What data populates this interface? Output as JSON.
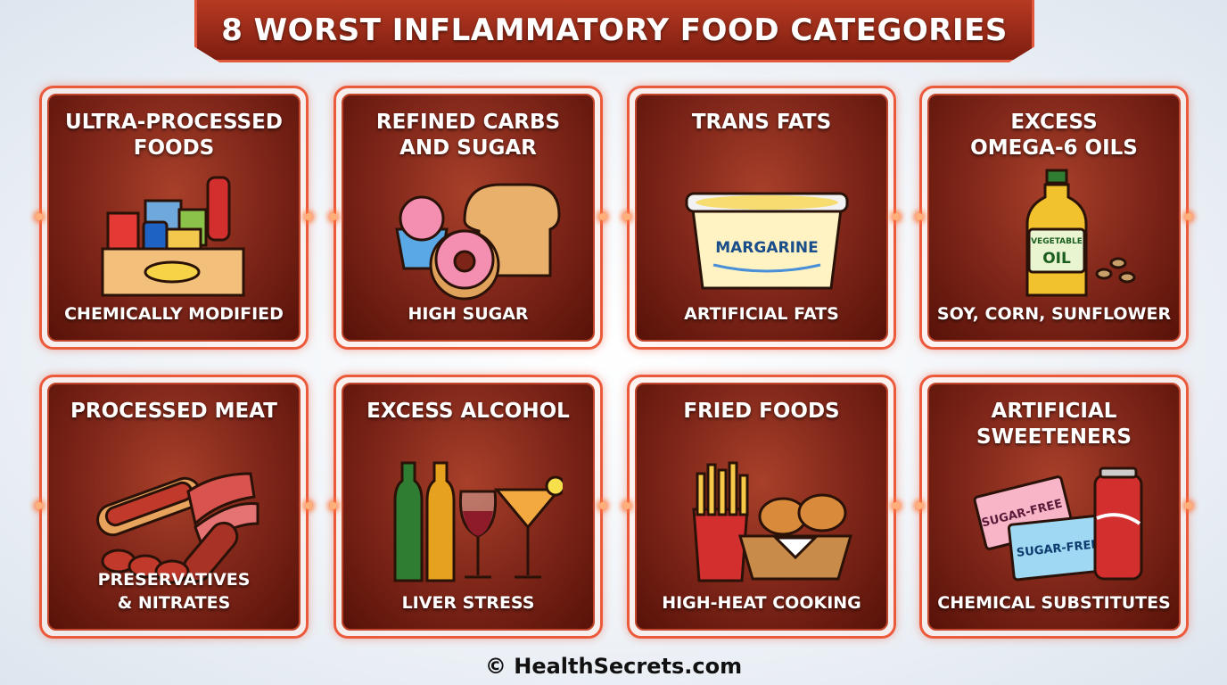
{
  "title": "8 WORST INFLAMMATORY FOOD CATEGORIES",
  "cards": [
    {
      "title": [
        "ULTRA-PROCESSED",
        "FOODS"
      ],
      "subtitle": [
        "CHEMICALLY MODIFIED"
      ],
      "icon_labels": []
    },
    {
      "title": [
        "REFINED CARBS",
        "AND SUGAR"
      ],
      "subtitle": [
        "HIGH SUGAR"
      ],
      "icon_labels": []
    },
    {
      "title": [
        "TRANS FATS"
      ],
      "subtitle": [
        "ARTIFICIAL FATS"
      ],
      "icon_labels": [
        "MARGARINE"
      ]
    },
    {
      "title": [
        "EXCESS",
        "OMEGA-6 OILS"
      ],
      "subtitle": [
        "SOY, CORN, SUNFLOWER"
      ],
      "icon_labels": [
        "VEGETABLE",
        "OIL"
      ]
    },
    {
      "title": [
        "PROCESSED MEAT"
      ],
      "subtitle": [
        "PRESERVATIVES",
        "& NITRATES"
      ],
      "icon_labels": []
    },
    {
      "title": [
        "EXCESS ALCOHOL"
      ],
      "subtitle": [
        "LIVER STRESS"
      ],
      "icon_labels": []
    },
    {
      "title": [
        "FRIED FOODS"
      ],
      "subtitle": [
        "HIGH-HEAT COOKING"
      ],
      "icon_labels": []
    },
    {
      "title": [
        "ARTIFICIAL",
        "SWEETENERS"
      ],
      "subtitle": [
        "CHEMICAL SUBSTITUTES"
      ],
      "icon_labels": [
        "SUGAR-FREE",
        "SUGAR-FREE"
      ]
    }
  ],
  "footer": "© HealthSecrets.com"
}
